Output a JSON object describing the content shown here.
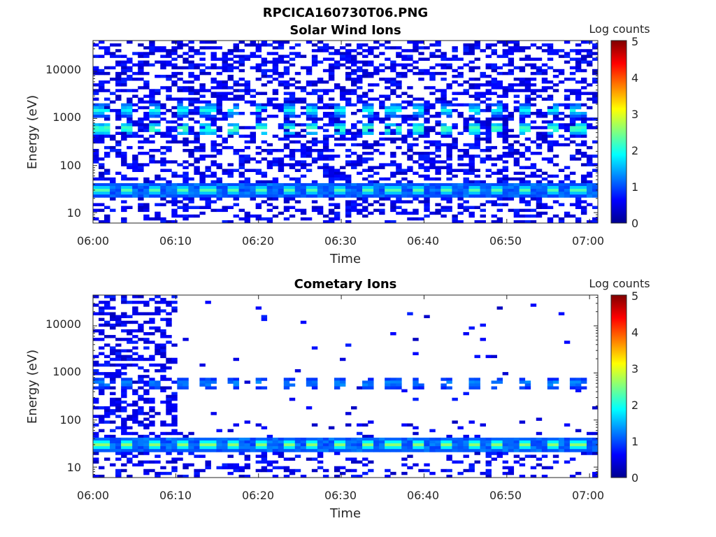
{
  "figure": {
    "title": "RPCICA160730T06.PNG"
  },
  "colormap": "jet",
  "chart_data": [
    {
      "type": "heatmap",
      "title": "Solar Wind Ions",
      "xlabel": "Time",
      "ylabel": "Energy (eV)",
      "x_ticks": [
        "06:00",
        "06:10",
        "06:20",
        "06:30",
        "06:40",
        "06:50",
        "07:00"
      ],
      "y_ticks": [
        "10",
        "100",
        "1000",
        "10000"
      ],
      "y_scale": "log",
      "xlim": [
        "06:00",
        "07:01"
      ],
      "ylim": [
        6,
        45000
      ],
      "colorbar": {
        "label": "Log counts",
        "ticks": [
          "0",
          "1",
          "2",
          "3",
          "4",
          "5"
        ],
        "range": [
          0,
          5
        ]
      },
      "bands": [
        {
          "energy_eV": 30,
          "log_counts_peak": 2.3,
          "period_min": 3.2,
          "description": "low-energy band"
        },
        {
          "energy_eV": 600,
          "log_counts_peak": 2.2,
          "period_min": 3.2
        },
        {
          "energy_eV": 1500,
          "log_counts_peak": 1.8,
          "period_min": 3.2
        }
      ],
      "background_log_counts": 0.3
    },
    {
      "type": "heatmap",
      "title": "Cometary Ions",
      "xlabel": "Time",
      "ylabel": "Energy (eV)",
      "x_ticks": [
        "06:00",
        "06:10",
        "06:20",
        "06:30",
        "06:40",
        "06:50",
        "07:00"
      ],
      "y_ticks": [
        "10",
        "100",
        "1000",
        "10000"
      ],
      "y_scale": "log",
      "xlim": [
        "06:00",
        "07:01"
      ],
      "ylim": [
        6,
        45000
      ],
      "colorbar": {
        "label": "Log counts",
        "ticks": [
          "0",
          "1",
          "2",
          "3",
          "4",
          "5"
        ],
        "range": [
          0,
          5
        ]
      },
      "bands": [
        {
          "energy_eV": 30,
          "log_counts_peak": 2.6,
          "period_min": 3.2
        },
        {
          "energy_eV": 600,
          "log_counts_peak": 1.2,
          "period_min": 3.2
        }
      ],
      "dense_until": "06:10"
    }
  ]
}
